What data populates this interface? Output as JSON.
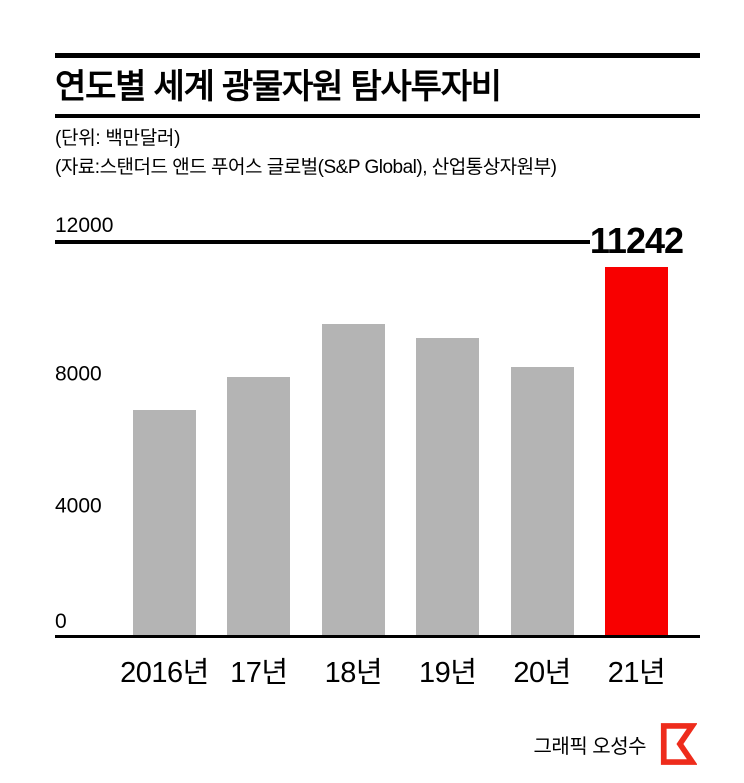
{
  "page": {
    "background": "#ffffff"
  },
  "header": {
    "title": "연도별 세계 광물자원 탐사투자비",
    "unit_label": "(단위: 백만달러)",
    "source_label": "(자료:스탠더드 앤드 푸어스 글로벌(S&P Global), 산업통상자원부)"
  },
  "chart_data": {
    "type": "bar",
    "title": "연도별 세계 광물자원 탐사투자비",
    "subtitle": "(단위: 백만달러)",
    "source": "(자료:스탠더드 앤드 푸어스 글로벌(S&P Global), 산업통상자원부)",
    "categories": [
      "2016년",
      "17년",
      "18년",
      "19년",
      "20년",
      "21년"
    ],
    "values": [
      6900,
      7900,
      9500,
      9100,
      8200,
      11242
    ],
    "highlight_index": 5,
    "highlight_value_label": "11242",
    "xlabel": "",
    "ylabel": "",
    "ylim": [
      0,
      12000
    ],
    "yticks": [
      0,
      4000,
      8000,
      12000
    ],
    "bar_color": "#b4b4b4",
    "highlight_color": "#f80000",
    "axis_color": "#000000",
    "legend": "none",
    "grid": "single top gridline at 12000 and baseline at 0"
  },
  "footer": {
    "credit": "그래픽 오성수",
    "logo_icon": "publisher-logo",
    "logo_color": "#ee2c1c"
  }
}
